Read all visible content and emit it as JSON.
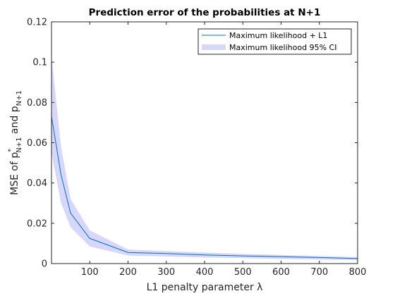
{
  "chart_data": {
    "type": "line",
    "title": "Prediction error of the probabilities at N+1",
    "xlabel": "L1 penalty parameter λ",
    "ylabel": {
      "prefix": "MSE of p",
      "sup1": "*",
      "sub1": "N+1",
      "mid": " and p",
      "sub2": "N+1"
    },
    "xlim": [
      0,
      800
    ],
    "ylim": [
      0,
      0.12
    ],
    "xticks": [
      100,
      200,
      300,
      400,
      500,
      600,
      700,
      800
    ],
    "yticks": [
      0,
      0.02,
      0.04,
      0.06,
      0.08,
      0.1,
      0.12
    ],
    "ytick_labels": [
      "0",
      "0.02",
      "0.04",
      "0.06",
      "0.08",
      "0.1",
      "0.12"
    ],
    "grid": false,
    "legend_position": "top-right",
    "series": [
      {
        "name": "Maximum likelihood + L1",
        "kind": "line",
        "color": "#0072bd",
        "x": [
          0,
          25,
          50,
          100,
          200,
          300,
          400,
          500,
          600,
          700,
          800
        ],
        "y": [
          0.073,
          0.044,
          0.025,
          0.0125,
          0.0055,
          0.005,
          0.0043,
          0.0038,
          0.0034,
          0.003,
          0.0025
        ]
      },
      {
        "name": "Maximum likelihood 95% CI",
        "kind": "band",
        "color": "#d7d7fc",
        "x": [
          0,
          25,
          50,
          100,
          200,
          300,
          400,
          500,
          600,
          700,
          800
        ],
        "lower": [
          0.055,
          0.03,
          0.018,
          0.0085,
          0.004,
          0.0035,
          0.003,
          0.0027,
          0.0023,
          0.002,
          0.0017
        ],
        "upper": [
          0.103,
          0.058,
          0.032,
          0.0165,
          0.007,
          0.0062,
          0.0055,
          0.0048,
          0.0043,
          0.0037,
          0.0032
        ]
      }
    ]
  }
}
